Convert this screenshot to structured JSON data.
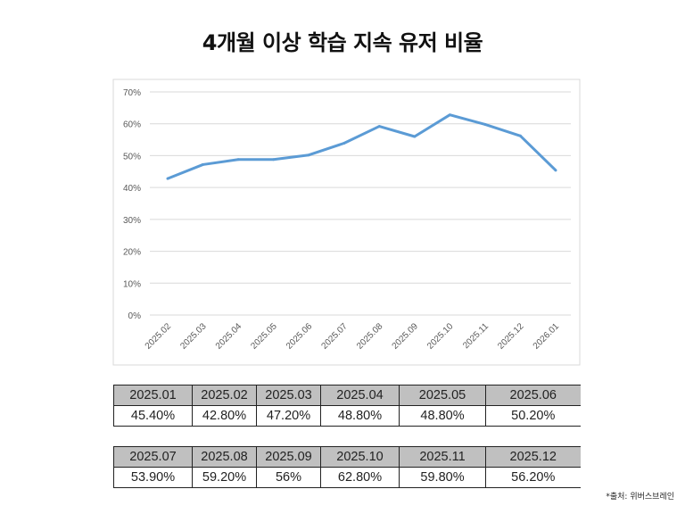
{
  "title": "4개월 이상 학습 지속 유저 비율",
  "chart_data": {
    "type": "line",
    "categories": [
      "2025.02",
      "2025.03",
      "2025.04",
      "2025.05",
      "2025.06",
      "2025.07",
      "2025.08",
      "2025.09",
      "2025.10",
      "2025.11",
      "2025.12",
      "2026.01"
    ],
    "values": [
      42.8,
      47.2,
      48.8,
      48.8,
      50.2,
      53.9,
      59.2,
      56,
      62.8,
      59.8,
      56.2,
      45.4
    ],
    "ylim": [
      0,
      70
    ],
    "yticks": [
      "0%",
      "10%",
      "20%",
      "30%",
      "40%",
      "50%",
      "60%",
      "70%"
    ],
    "grid": true,
    "line_color": "#5B9BD5"
  },
  "tables": [
    {
      "headers": [
        "2025.01",
        "2025.02",
        "2025.03",
        "2025.04",
        "2025.05",
        "2025.06"
      ],
      "values": [
        "45.40%",
        "42.80%",
        "47.20%",
        "48.80%",
        "48.80%",
        "50.20%"
      ]
    },
    {
      "headers": [
        "2025.07",
        "2025.08",
        "2025.09",
        "2025.10",
        "2025.11",
        "2025.12"
      ],
      "values": [
        "53.90%",
        "59.20%",
        "56%",
        "62.80%",
        "59.80%",
        "56.20%"
      ]
    }
  ],
  "source": "*출처: 위버스브레인"
}
